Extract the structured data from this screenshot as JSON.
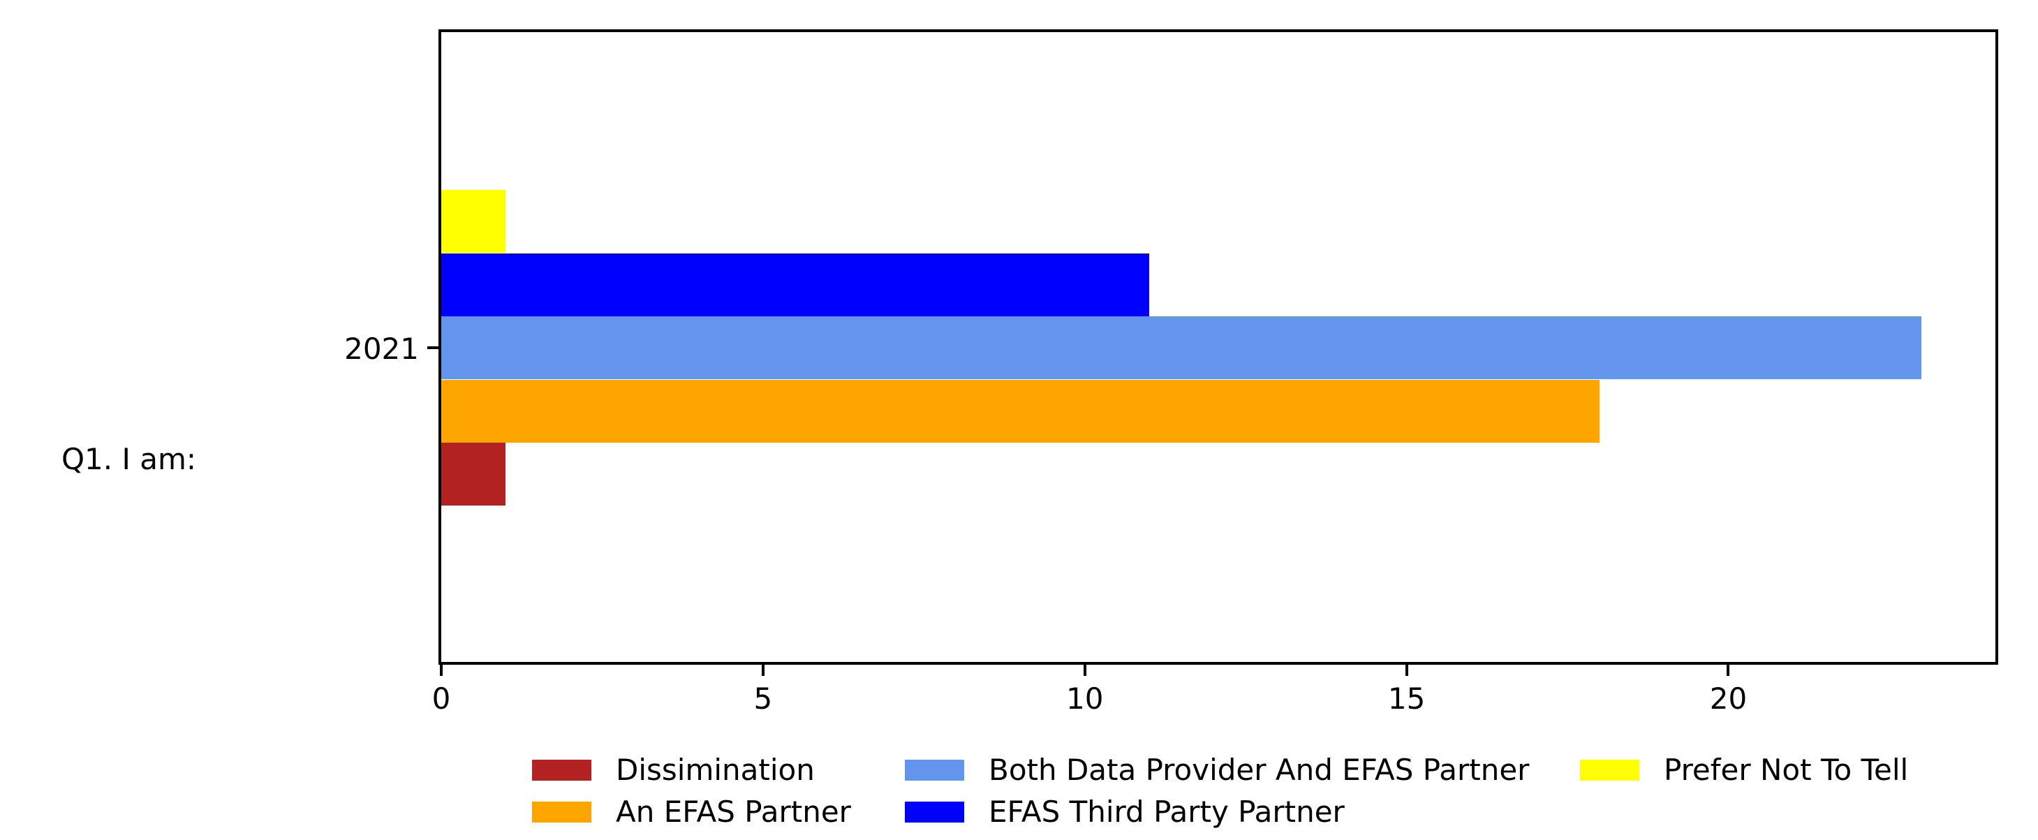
{
  "figure": {
    "background": "#ffffff",
    "text_color": "#000000",
    "ylabel": "Q1. I am:",
    "ytick_label": "2021"
  },
  "chart_data": {
    "type": "bar",
    "orientation": "horizontal",
    "title": "",
    "xlabel": "",
    "ylabel": "Q1. I am:",
    "categories": [
      "2021"
    ],
    "series": [
      {
        "name": "Dissimination",
        "color": "#B22222",
        "values": [
          1
        ]
      },
      {
        "name": "An EFAS Partner",
        "color": "#FFA500",
        "values": [
          18
        ]
      },
      {
        "name": "Both Data Provider And EFAS Partner",
        "color": "#6495ED",
        "values": [
          23
        ]
      },
      {
        "name": "EFAS Third Party Partner",
        "color": "#0000FF",
        "values": [
          11
        ]
      },
      {
        "name": "Prefer Not To Tell",
        "color": "#FFFF00",
        "values": [
          1
        ]
      }
    ],
    "bar_order_bottom_to_top": [
      "Dissimination",
      "An EFAS Partner",
      "Both Data Provider And EFAS Partner",
      "EFAS Third Party Partner",
      "Prefer Not To Tell"
    ],
    "xticks": [
      0,
      5,
      10,
      15,
      20
    ],
    "xlim": [
      0,
      24.15
    ],
    "grid": false,
    "plot_border": "#000000",
    "legend": {
      "position": "bottom-center",
      "rows": 2,
      "columns": [
        [
          "Dissimination",
          "An EFAS Partner"
        ],
        [
          "Both Data Provider And EFAS Partner",
          "EFAS Third Party Partner"
        ],
        [
          "Prefer Not To Tell"
        ]
      ]
    }
  }
}
